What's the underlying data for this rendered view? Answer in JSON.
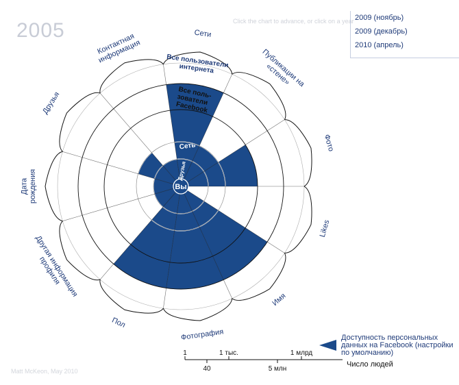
{
  "year": "2005",
  "hint": "Click the chart to advance, or click on a year",
  "credit": "Matt McKeon, May 2010",
  "years": [
    "2009 (ноябрь)",
    "2009 (декабрь)",
    "2010 (апрель)"
  ],
  "center_label": "Вы",
  "ring_labels": {
    "friends": "Друзья",
    "network": "Сеть",
    "facebook": "Все поль-зователи Facebook",
    "internet": "Все пользователи интернета"
  },
  "categories": [
    {
      "name": "Likes",
      "level": 0
    },
    {
      "name": "Имя",
      "level": 4
    },
    {
      "name": "Фотография",
      "level": 4
    },
    {
      "name": "Пол",
      "level": 4
    },
    {
      "name": "Другая информация профиля",
      "level": 1
    },
    {
      "name": "Дата рождения",
      "level": 1
    },
    {
      "name": "Друзья",
      "level": 2
    },
    {
      "name": "Контактная информация",
      "level": 1
    },
    {
      "name": "Сети",
      "level": 4
    },
    {
      "name": "Публикации на «стене»",
      "level": 2
    },
    {
      "name": "Фото",
      "level": 3
    }
  ],
  "legend": {
    "text": "Доступность персональных данных на Facebook (настройки по умолчанию)",
    "scale_title": "Число людей",
    "ticks_top": [
      "1",
      "1 тыс.",
      "1 млрд"
    ],
    "ticks_bottom": [
      "40",
      "5 млн"
    ]
  },
  "colors": {
    "fill": "#1b4a8a",
    "stroke": "#111111",
    "text": "#1e3a78",
    "light": "#cfd4de"
  }
}
